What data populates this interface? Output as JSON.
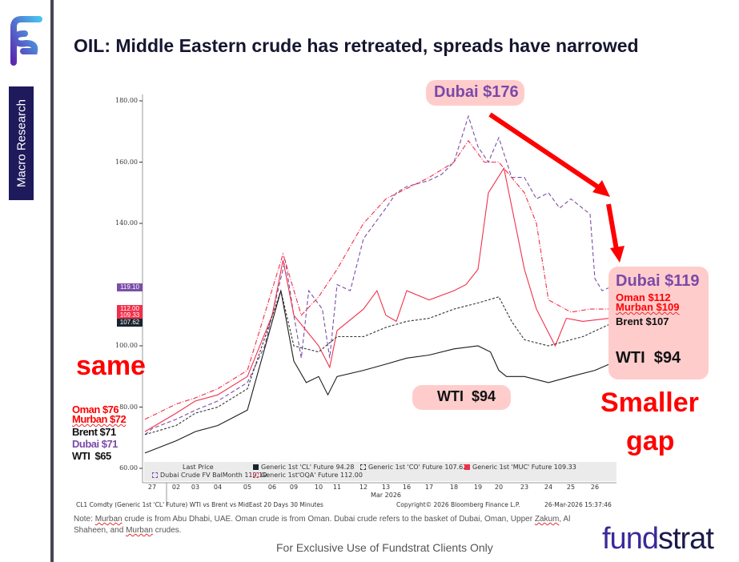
{
  "sidebar": {
    "section_label": "Macro Research",
    "brand_logo": "Fundstrat F"
  },
  "title": "OIL: Middle Eastern crude has retreated, spreads have narrowed",
  "annotations": {
    "peak": "Dubai $176",
    "end": {
      "dubai": "Dubai $119",
      "oman": "Oman $112",
      "murban": "Murban $109",
      "brent": "Brent $107",
      "wti": "WTI  $94"
    },
    "start": {
      "oman": "Oman $76",
      "murban": "Murban $72",
      "brent": "Brent $71",
      "dubai": "Dubai $71",
      "wti": "WTI  $65"
    },
    "same": "same",
    "mid_wti": "WTI  $94",
    "smaller": "Smaller",
    "gap": "gap"
  },
  "chart_data": {
    "type": "line",
    "title": "CL1 Comdty (Generic 1st 'CL' Future) WTI vs Brent vs MidEast 20 Days 30 Minutes",
    "xlabel": "Mar 2026",
    "x_ticks": [
      "27",
      "02",
      "03",
      "04",
      "05",
      "06",
      "09",
      "10",
      "11",
      "12",
      "13",
      "16",
      "17",
      "18",
      "19",
      "20",
      "23",
      "24",
      "25",
      "26"
    ],
    "y_ticks": [
      "180.00",
      "160.00",
      "140.00",
      "100.00",
      "80.00",
      "60.00"
    ],
    "ylim": [
      60,
      185
    ],
    "legend_title": "Last Price",
    "last_tags": [
      {
        "label": "119.10",
        "color": "#7b4fa8",
        "value": 119.1
      },
      {
        "label": "112.00",
        "color": "#f0304a",
        "value": 112
      },
      {
        "label": "109.33",
        "color": "#f0304a",
        "value": 109.33
      },
      {
        "label": "107.62",
        "color": "#1a2430",
        "value": 107.62
      }
    ],
    "series": [
      {
        "name": "Dubai Crude FV BalMonth",
        "legend": "Dubai Crude FV BalMonth 119.10",
        "color": "#7b4fa8",
        "dash": "5,3",
        "points": [
          [
            -0.3,
            71
          ],
          [
            0,
            73
          ],
          [
            1,
            76
          ],
          [
            2,
            79
          ],
          [
            3,
            82
          ],
          [
            4,
            88
          ],
          [
            4.7,
            100
          ],
          [
            5.6,
            128
          ],
          [
            6,
            110
          ],
          [
            6.3,
            96
          ],
          [
            6.6,
            118
          ],
          [
            7.2,
            112
          ],
          [
            7.6,
            96
          ],
          [
            8,
            120
          ],
          [
            8.5,
            118
          ],
          [
            9,
            135
          ],
          [
            9.5,
            140
          ],
          [
            10,
            145
          ],
          [
            10.5,
            150
          ],
          [
            11,
            152
          ],
          [
            12,
            154
          ],
          [
            12.5,
            156
          ],
          [
            13,
            160
          ],
          [
            13.6,
            175
          ],
          [
            14,
            165
          ],
          [
            14.5,
            160
          ],
          [
            15,
            168
          ],
          [
            15.5,
            155
          ],
          [
            16,
            155
          ],
          [
            16.5,
            148
          ],
          [
            17,
            150
          ],
          [
            17.5,
            145
          ],
          [
            18,
            148
          ],
          [
            18.8,
            143
          ],
          [
            19,
            122
          ],
          [
            19.3,
            118
          ],
          [
            19.6,
            119
          ]
        ]
      },
      {
        "name": "Generic 1st'OQA' Future",
        "legend": "Generic 1st'OQA' Future 112.00",
        "color": "#f0304a",
        "dash": "6,2,1,2",
        "points": [
          [
            -0.3,
            76
          ],
          [
            1,
            81
          ],
          [
            2,
            83
          ],
          [
            3,
            86
          ],
          [
            4,
            92
          ],
          [
            5.5,
            130
          ],
          [
            6.3,
            110
          ],
          [
            7,
            116
          ],
          [
            8,
            125
          ],
          [
            9,
            140
          ],
          [
            10,
            148
          ],
          [
            12,
            155
          ],
          [
            13,
            160
          ],
          [
            13.6,
            167
          ],
          [
            14.3,
            160
          ],
          [
            15,
            160
          ],
          [
            16,
            150
          ],
          [
            16.5,
            140
          ],
          [
            17,
            115
          ],
          [
            18,
            111
          ],
          [
            18.8,
            112
          ],
          [
            19.6,
            112
          ]
        ]
      },
      {
        "name": "Generic 1st 'MUC' Future",
        "legend": "Generic 1st 'MUC' Future 109.33",
        "color": "#f0304a",
        "dash": "",
        "points": [
          [
            -0.3,
            72
          ],
          [
            1,
            78
          ],
          [
            2,
            82
          ],
          [
            3,
            84
          ],
          [
            4,
            90
          ],
          [
            5,
            110
          ],
          [
            5.5,
            128
          ],
          [
            6,
            110
          ],
          [
            7,
            100
          ],
          [
            7.6,
            93
          ],
          [
            8,
            105
          ],
          [
            9,
            112
          ],
          [
            9.6,
            118
          ],
          [
            10,
            110
          ],
          [
            10.5,
            108
          ],
          [
            11,
            118
          ],
          [
            12,
            115
          ],
          [
            13,
            118
          ],
          [
            13.5,
            120
          ],
          [
            14,
            125
          ],
          [
            14.5,
            150
          ],
          [
            15.2,
            158
          ],
          [
            16,
            125
          ],
          [
            16.5,
            112
          ],
          [
            17.3,
            100
          ],
          [
            17.8,
            109
          ],
          [
            18.5,
            108
          ],
          [
            19.6,
            109
          ]
        ]
      },
      {
        "name": "Generic 1st 'CO' Future",
        "legend": "Generic 1st 'CO' Future 107.62",
        "color": "#333333",
        "dash": "3,2",
        "points": [
          [
            -0.3,
            71
          ],
          [
            1,
            74
          ],
          [
            2,
            78
          ],
          [
            3,
            80
          ],
          [
            4,
            86
          ],
          [
            5.4,
            118
          ],
          [
            6,
            100
          ],
          [
            7,
            98
          ],
          [
            8,
            103
          ],
          [
            9,
            103
          ],
          [
            10,
            106
          ],
          [
            11,
            108
          ],
          [
            12,
            109
          ],
          [
            13,
            112
          ],
          [
            14,
            114
          ],
          [
            15,
            116
          ],
          [
            15.5,
            108
          ],
          [
            16,
            102
          ],
          [
            17,
            100
          ],
          [
            18,
            102
          ],
          [
            18.5,
            103
          ],
          [
            19.6,
            107
          ]
        ]
      },
      {
        "name": "Generic 1st 'CL' Future",
        "legend": "Generic 1st 'CL' Future 94.28",
        "color": "#1a1a1a",
        "dash": "",
        "points": [
          [
            -0.3,
            65
          ],
          [
            1,
            69
          ],
          [
            2,
            72
          ],
          [
            3,
            74
          ],
          [
            4,
            79
          ],
          [
            5.4,
            118
          ],
          [
            6,
            95
          ],
          [
            6.5,
            88
          ],
          [
            7,
            90
          ],
          [
            7.5,
            84
          ],
          [
            8,
            90
          ],
          [
            9,
            92
          ],
          [
            10,
            94
          ],
          [
            11,
            96
          ],
          [
            12,
            97
          ],
          [
            13,
            99
          ],
          [
            14,
            100
          ],
          [
            14.6,
            98
          ],
          [
            15,
            92
          ],
          [
            15.3,
            90
          ],
          [
            16,
            90
          ],
          [
            17,
            88
          ],
          [
            18,
            90
          ],
          [
            19,
            92
          ],
          [
            19.6,
            94
          ]
        ]
      }
    ],
    "copyright": "Copyright© 2026 Bloomberg Finance L.P.",
    "timestamp": "26-Mar-2026 15:37:46"
  },
  "note": {
    "prefix": "Note: ",
    "w1": "Murban",
    "t1": " crude is from Abu Dhabi, UAE. Oman crude is from Oman. Dubai crude refers to the basket of Dubai, Oman, Upper ",
    "w2": "Zakum",
    "t2": ", Al Shaheen, and ",
    "w3": "Murban",
    "t3": " crudes."
  },
  "disclaimer": "For Exclusive Use of Fundstrat Clients Only",
  "brand": {
    "a": "fund",
    "b": "strat"
  }
}
